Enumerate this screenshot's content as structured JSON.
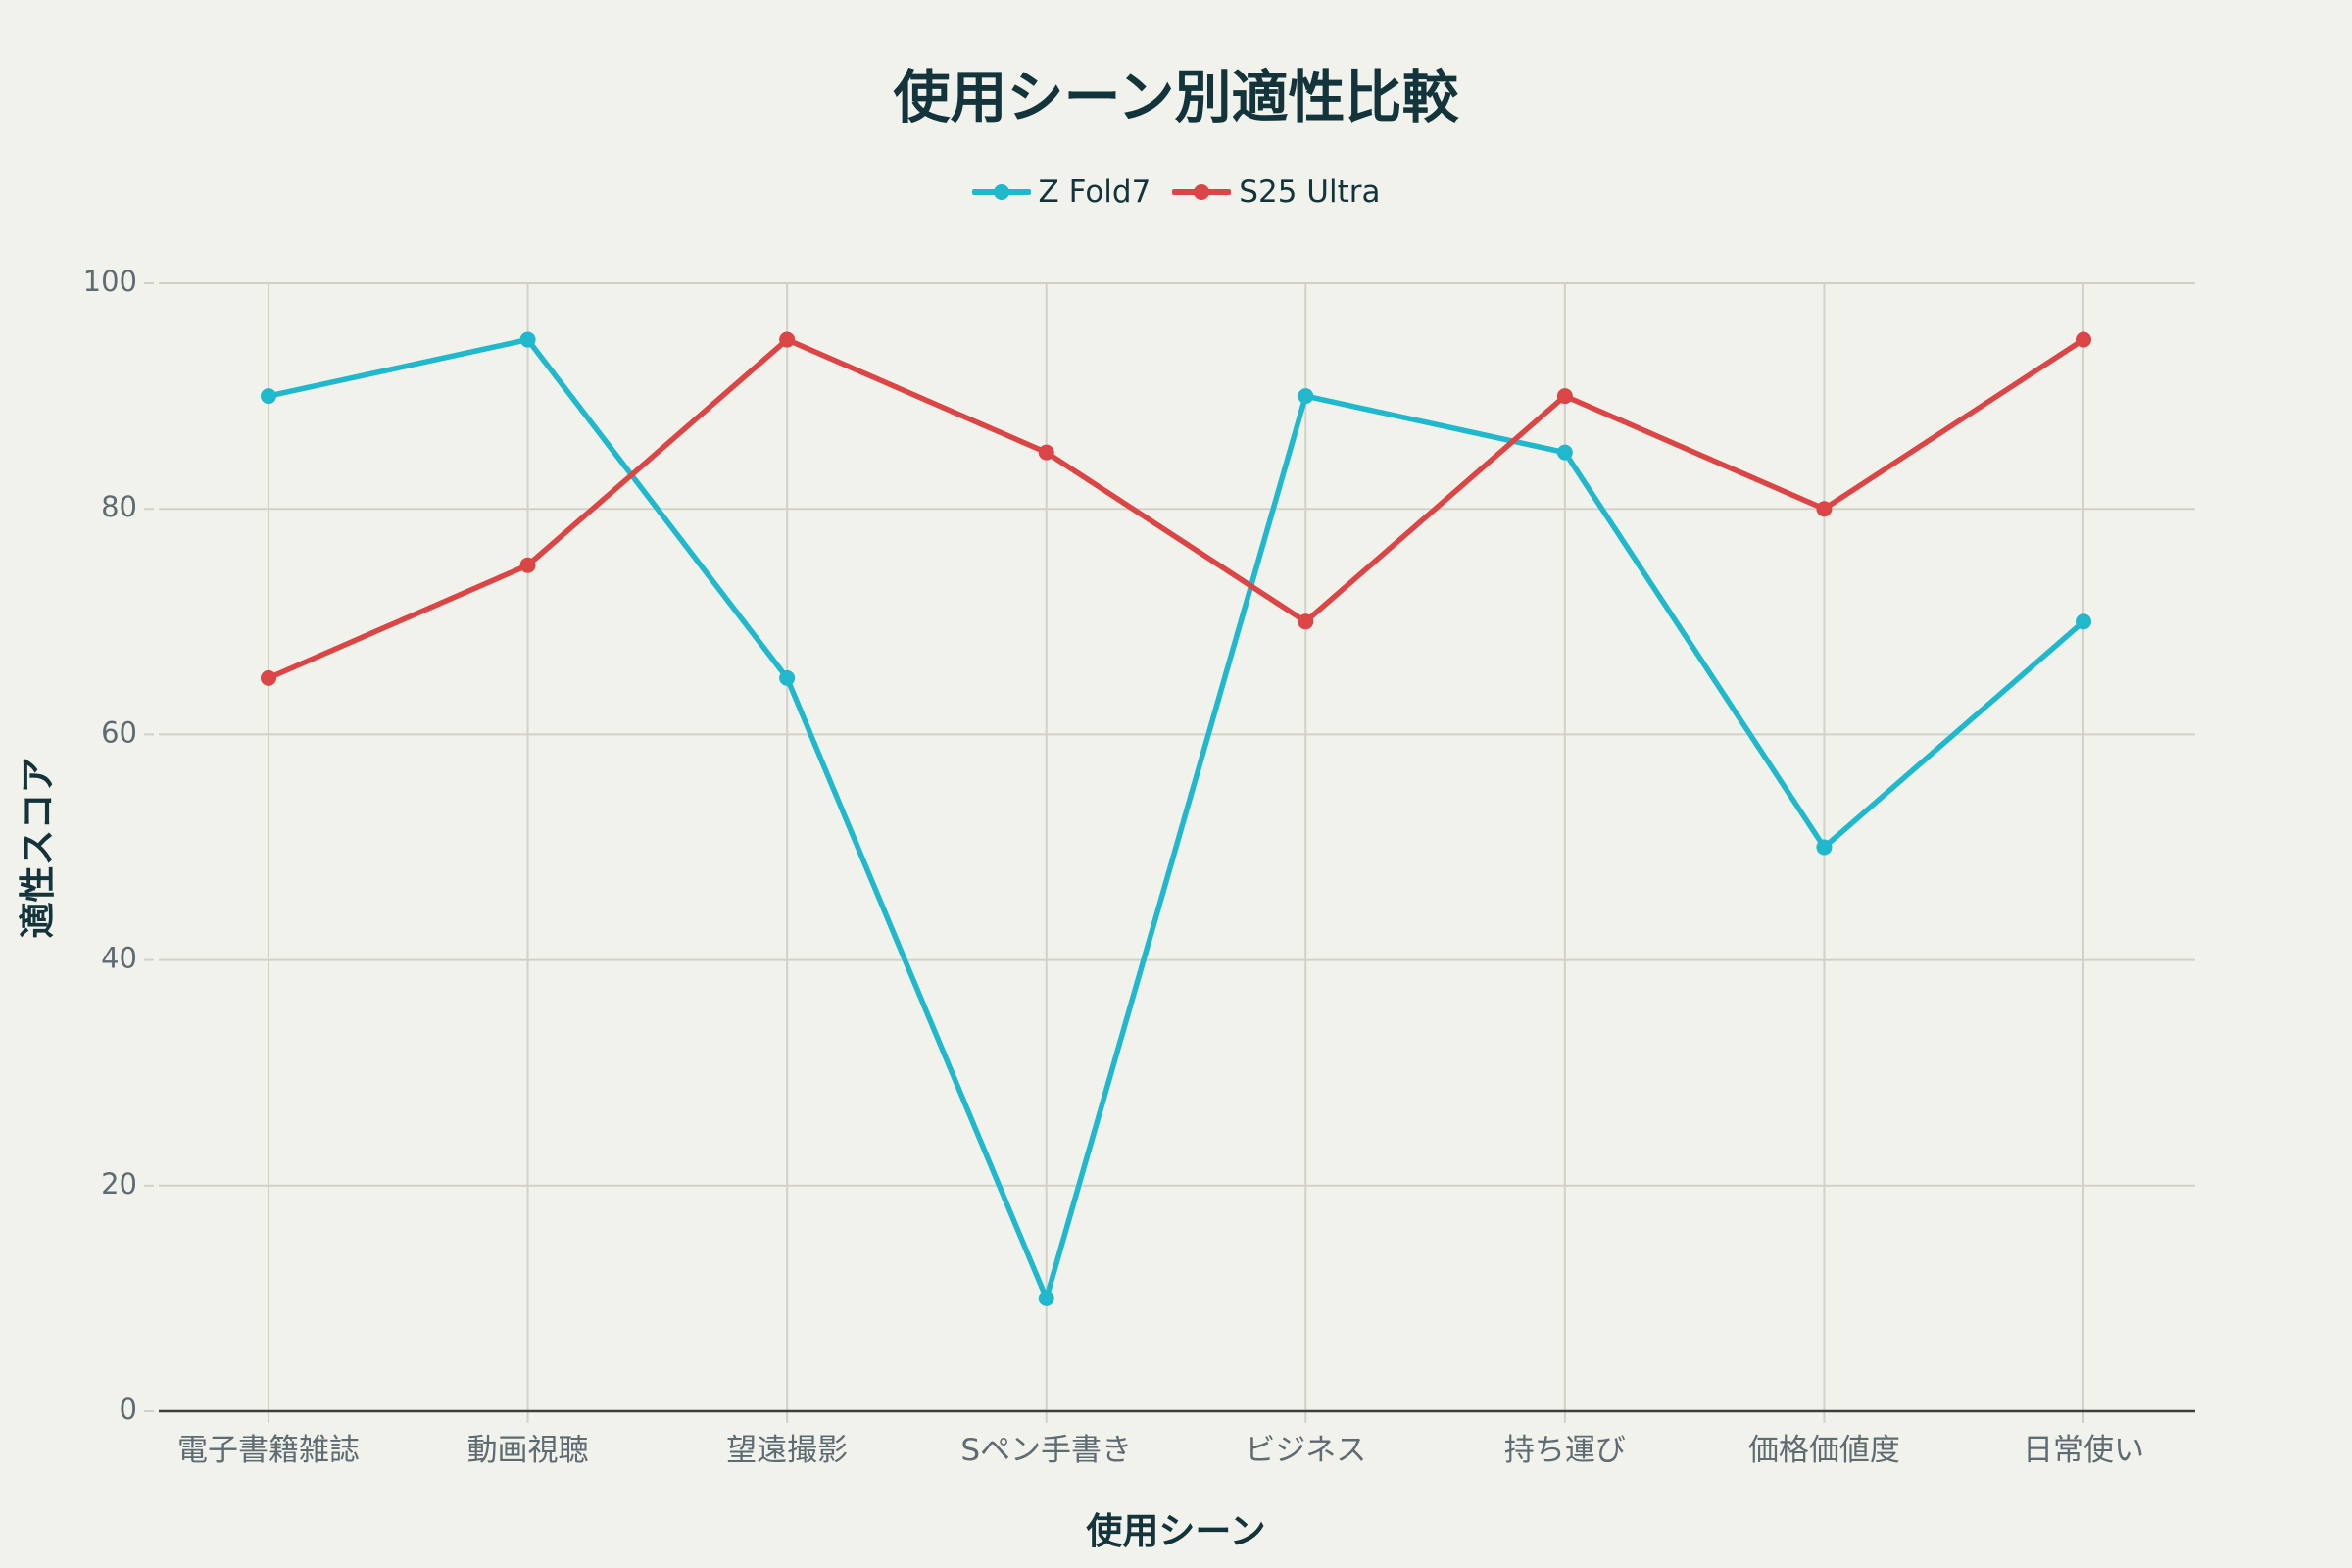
{
  "chart_data": {
    "type": "line",
    "title": "使用シーン別適性比較",
    "xlabel": "使用シーン",
    "ylabel": "適性スコア",
    "categories": [
      "電子書籍雑誌",
      "動画視聴",
      "望遠撮影",
      "Sペン手書き",
      "ビジネス",
      "持ち運び",
      "価格価値度",
      "日常使い"
    ],
    "series": [
      {
        "name": "Z Fold7",
        "color": "#1fb8cd",
        "values": [
          90,
          95,
          65,
          10,
          90,
          85,
          50,
          70
        ]
      },
      {
        "name": "S25 Ultra",
        "color": "#db4545",
        "values": [
          65,
          75,
          95,
          85,
          70,
          90,
          80,
          95
        ]
      }
    ],
    "ylim": [
      0,
      100
    ],
    "yticks": [
      0,
      20,
      40,
      60,
      80,
      100
    ],
    "grid": true,
    "legend_position": "top-center"
  }
}
